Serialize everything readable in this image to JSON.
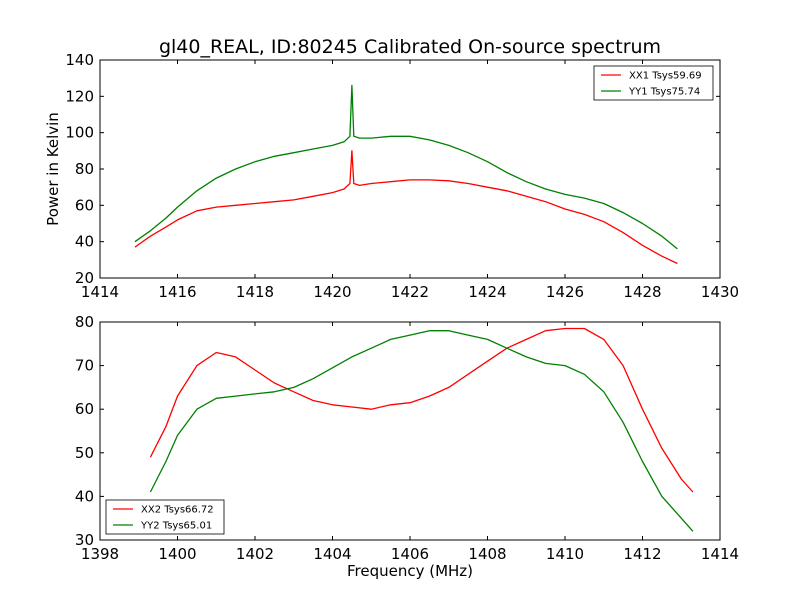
{
  "title": "gl40_REAL, ID:80245 Calibrated On-source spectrum",
  "chart_data": [
    {
      "type": "line",
      "title": "gl40_REAL, ID:80245 Calibrated On-source spectrum",
      "xlabel": "",
      "ylabel": "Power in Kelvin",
      "xlim": [
        1414,
        1430
      ],
      "ylim": [
        20,
        140
      ],
      "xticks": [
        "1414",
        "1416",
        "1418",
        "1420",
        "1422",
        "1424",
        "1426",
        "1428",
        "1430"
      ],
      "yticks": [
        "20",
        "40",
        "60",
        "80",
        "100",
        "120",
        "140"
      ],
      "grid": false,
      "legend_position": "top-right",
      "series": [
        {
          "name": "XX1 Tsys59.69",
          "color": "#ff0000",
          "x": [
            1414.9,
            1415.3,
            1415.7,
            1416.0,
            1416.5,
            1417.0,
            1417.5,
            1418.0,
            1418.5,
            1419.0,
            1419.5,
            1420.0,
            1420.3,
            1420.45,
            1420.5,
            1420.55,
            1420.7,
            1421.0,
            1421.5,
            1422.0,
            1422.5,
            1423.0,
            1423.5,
            1424.0,
            1424.5,
            1425.0,
            1425.5,
            1426.0,
            1426.5,
            1427.0,
            1427.5,
            1428.0,
            1428.5,
            1428.9
          ],
          "y": [
            37,
            43,
            48,
            52,
            57,
            59,
            60,
            61,
            62,
            63,
            65,
            67,
            69,
            72,
            90,
            72,
            71,
            72,
            73,
            74,
            74,
            73.5,
            72,
            70,
            68,
            65,
            62,
            58,
            55,
            51,
            45,
            38,
            32,
            28
          ]
        },
        {
          "name": "YY1 Tsys75.74",
          "color": "#008000",
          "x": [
            1414.9,
            1415.3,
            1415.7,
            1416.0,
            1416.5,
            1417.0,
            1417.5,
            1418.0,
            1418.5,
            1419.0,
            1419.5,
            1420.0,
            1420.3,
            1420.45,
            1420.5,
            1420.55,
            1420.7,
            1421.0,
            1421.5,
            1422.0,
            1422.5,
            1423.0,
            1423.5,
            1424.0,
            1424.5,
            1425.0,
            1425.5,
            1426.0,
            1426.5,
            1427.0,
            1427.5,
            1428.0,
            1428.5,
            1428.9
          ],
          "y": [
            40,
            46,
            53,
            59,
            68,
            75,
            80,
            84,
            87,
            89,
            91,
            93,
            95,
            98,
            126,
            98,
            97,
            97,
            98,
            98,
            96,
            93,
            89,
            84,
            78,
            73,
            69,
            66,
            64,
            61,
            56,
            50,
            43,
            36
          ]
        }
      ]
    },
    {
      "type": "line",
      "title": "",
      "xlabel": "Frequency (MHz)",
      "ylabel": "",
      "xlim": [
        1398,
        1414
      ],
      "ylim": [
        30,
        80
      ],
      "xticks": [
        "1398",
        "1400",
        "1402",
        "1404",
        "1406",
        "1408",
        "1410",
        "1412",
        "1414"
      ],
      "yticks": [
        "30",
        "40",
        "50",
        "60",
        "70",
        "80"
      ],
      "grid": false,
      "legend_position": "bottom-left",
      "series": [
        {
          "name": "XX2 Tsys66.72",
          "color": "#ff0000",
          "x": [
            1399.3,
            1399.7,
            1400.0,
            1400.5,
            1401.0,
            1401.5,
            1402.0,
            1402.5,
            1403.0,
            1403.5,
            1404.0,
            1404.5,
            1405.0,
            1405.5,
            1406.0,
            1406.5,
            1407.0,
            1407.5,
            1408.0,
            1408.5,
            1409.0,
            1409.5,
            1410.0,
            1410.5,
            1411.0,
            1411.5,
            1412.0,
            1412.5,
            1413.0,
            1413.3
          ],
          "y": [
            49,
            56,
            63,
            70,
            73,
            72,
            69,
            66,
            64,
            62,
            61,
            60.5,
            60,
            61,
            61.5,
            63,
            65,
            68,
            71,
            74,
            76,
            78,
            78.5,
            78.5,
            76,
            70,
            60,
            51,
            44,
            41
          ]
        },
        {
          "name": "YY2 Tsys65.01",
          "color": "#008000",
          "x": [
            1399.3,
            1399.7,
            1400.0,
            1400.5,
            1401.0,
            1401.5,
            1402.0,
            1402.5,
            1403.0,
            1403.5,
            1404.0,
            1404.5,
            1405.0,
            1405.5,
            1406.0,
            1406.5,
            1407.0,
            1407.5,
            1408.0,
            1408.5,
            1409.0,
            1409.5,
            1410.0,
            1410.5,
            1411.0,
            1411.5,
            1412.0,
            1412.5,
            1413.0,
            1413.3
          ],
          "y": [
            41,
            48,
            54,
            60,
            62.5,
            63,
            63.5,
            64,
            65,
            67,
            69.5,
            72,
            74,
            76,
            77,
            78,
            78,
            77,
            76,
            74,
            72,
            70.5,
            70,
            68,
            64,
            57,
            48,
            40,
            35,
            32
          ]
        }
      ]
    }
  ]
}
